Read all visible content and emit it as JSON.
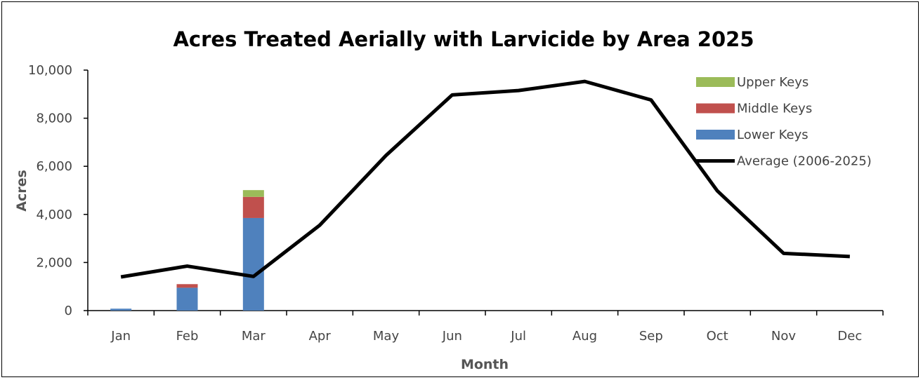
{
  "chart_data": {
    "type": "bar",
    "title": "Acres Treated Aerially with Larvicide by Area 2025",
    "xlabel": "Month",
    "ylabel": "Acres",
    "ylim": [
      0,
      10000
    ],
    "yticks": [
      0,
      2000,
      4000,
      6000,
      8000,
      10000
    ],
    "ytick_labels": [
      "0",
      "2,000",
      "4,000",
      "6,000",
      "8,000",
      "10,000"
    ],
    "categories": [
      "Jan",
      "Feb",
      "Mar",
      "Apr",
      "May",
      "Jun",
      "Jul",
      "Aug",
      "Sep",
      "Oct",
      "Nov",
      "Dec"
    ],
    "stacked": true,
    "grid": false,
    "legend_position": "top-right",
    "series": [
      {
        "name": "Lower Keys",
        "kind": "bar",
        "color": "#4f81bd",
        "values": [
          80,
          950,
          3850,
          0,
          0,
          0,
          0,
          0,
          0,
          0,
          0,
          0
        ]
      },
      {
        "name": "Middle Keys",
        "kind": "bar",
        "color": "#c0504d",
        "values": [
          0,
          150,
          880,
          0,
          0,
          0,
          0,
          0,
          0,
          0,
          0,
          0
        ]
      },
      {
        "name": "Upper Keys",
        "kind": "bar",
        "color": "#9bbb59",
        "values": [
          0,
          0,
          280,
          0,
          0,
          0,
          0,
          0,
          0,
          0,
          0,
          0
        ]
      },
      {
        "name": "Average (2006-2025)",
        "kind": "line",
        "color": "#000000",
        "values": [
          1400,
          1850,
          1420,
          3550,
          6450,
          8970,
          9150,
          9530,
          8760,
          4980,
          2380,
          2250
        ]
      }
    ],
    "legend_order": [
      "Upper Keys",
      "Middle Keys",
      "Lower Keys",
      "Average (2006-2025)"
    ]
  }
}
